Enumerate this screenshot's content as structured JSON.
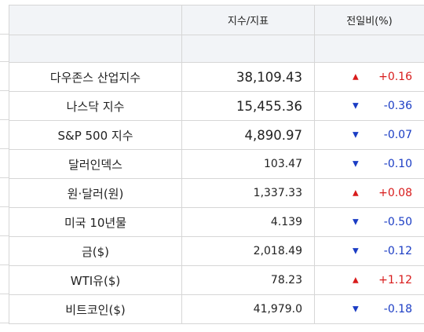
{
  "headers": {
    "name": "",
    "value": "지수/지표",
    "change": "전일비(%)"
  },
  "colors": {
    "up": "#d81b1b",
    "down": "#1a3cc4",
    "header_bg": "#f2f4f7"
  },
  "rows": [
    {
      "name": "다우존스 산업지수",
      "value": "38,109.43",
      "dir": "up",
      "arrow": "▲",
      "change": "+0.16"
    },
    {
      "name": "나스닥 지수",
      "value": "15,455.36",
      "dir": "down",
      "arrow": "▼",
      "change": "-0.36"
    },
    {
      "name": "S&P 500 지수",
      "value": "4,890.97",
      "dir": "down",
      "arrow": "▼",
      "change": "-0.07"
    },
    {
      "name": "달러인덱스",
      "value": "103.47",
      "dir": "down",
      "arrow": "▼",
      "change": "-0.10"
    },
    {
      "name": "원·달러(원)",
      "value": "1,337.33",
      "dir": "up",
      "arrow": "▲",
      "change": "+0.08"
    },
    {
      "name": "미국 10년물",
      "value": "4.139",
      "dir": "down",
      "arrow": "▼",
      "change": "-0.50"
    },
    {
      "name": "금($)",
      "value": "2,018.49",
      "dir": "down",
      "arrow": "▼",
      "change": "-0.12"
    },
    {
      "name": "WTI유($)",
      "value": "78.23",
      "dir": "up",
      "arrow": "▲",
      "change": "+1.12"
    },
    {
      "name": "비트코인($)",
      "value": "41,979.0",
      "dir": "down",
      "arrow": "▼",
      "change": "-0.18"
    }
  ]
}
